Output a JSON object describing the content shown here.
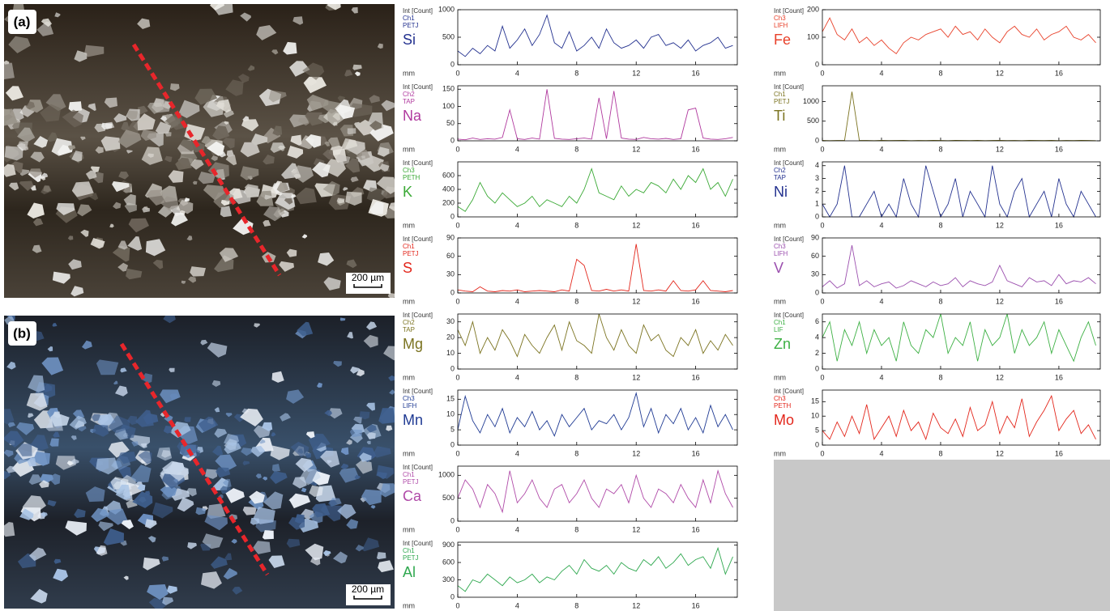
{
  "panels": [
    {
      "label": "(a)",
      "scale": "200 µm"
    },
    {
      "label": "(b)",
      "scale": "200 µm"
    }
  ],
  "chart_data": [
    {
      "type": "line",
      "y_label": "Int [Count]",
      "channel": "Ch1",
      "crystal": "PETJ",
      "title": "Si",
      "x_label": "mm",
      "color": "#23318f",
      "xlim": [
        0,
        18.8
      ],
      "xticks": [
        0,
        4,
        8,
        12,
        16
      ],
      "ylim": [
        0,
        1000
      ],
      "yticks": [
        0,
        500,
        1000
      ],
      "x": [
        0,
        0.5,
        1,
        1.5,
        2,
        2.5,
        3,
        3.5,
        4,
        4.5,
        5,
        5.5,
        6,
        6.5,
        7,
        7.5,
        8,
        8.5,
        9,
        9.5,
        10,
        10.5,
        11,
        11.5,
        12,
        12.5,
        13,
        13.5,
        14,
        14.5,
        15,
        15.5,
        16,
        16.5,
        17,
        17.5,
        18,
        18.5
      ],
      "values": [
        250,
        150,
        300,
        200,
        350,
        250,
        700,
        300,
        450,
        650,
        350,
        550,
        900,
        400,
        300,
        600,
        250,
        350,
        500,
        300,
        650,
        400,
        300,
        350,
        450,
        300,
        500,
        550,
        350,
        400,
        300,
        450,
        250,
        350,
        400,
        500,
        300,
        350
      ]
    },
    {
      "type": "line",
      "y_label": "Int [Count]",
      "channel": "Ch2",
      "crystal": "TAP",
      "title": "Na",
      "x_label": "mm",
      "color": "#b0399e",
      "xlim": [
        0,
        18.8
      ],
      "xticks": [
        0,
        4,
        8,
        12,
        16
      ],
      "ylim": [
        0,
        160
      ],
      "yticks": [
        0,
        50,
        100,
        150
      ],
      "x": [
        0,
        0.5,
        1,
        1.5,
        2,
        2.5,
        3,
        3.5,
        4,
        4.5,
        5,
        5.5,
        6,
        6.5,
        7,
        7.5,
        8,
        8.5,
        9,
        9.5,
        10,
        10.5,
        11,
        11.5,
        12,
        12.5,
        13,
        13.5,
        14,
        14.5,
        15,
        15.5,
        16,
        16.5,
        17,
        17.5,
        18,
        18.5
      ],
      "values": [
        5,
        3,
        8,
        4,
        6,
        5,
        10,
        90,
        6,
        4,
        8,
        5,
        150,
        7,
        5,
        4,
        6,
        8,
        5,
        125,
        6,
        145,
        8,
        5,
        4,
        10,
        6,
        5,
        7,
        4,
        6,
        90,
        95,
        8,
        5,
        4,
        6,
        10
      ]
    },
    {
      "type": "line",
      "y_label": "Int [Count]",
      "channel": "Ch3",
      "crystal": "PETH",
      "title": "K",
      "x_label": "mm",
      "color": "#3aa935",
      "xlim": [
        0,
        18.8
      ],
      "xticks": [
        0,
        4,
        8,
        12,
        16
      ],
      "ylim": [
        0,
        800
      ],
      "yticks": [
        0,
        200,
        400,
        600
      ],
      "x": [
        0,
        0.5,
        1,
        1.5,
        2,
        2.5,
        3,
        3.5,
        4,
        4.5,
        5,
        5.5,
        6,
        6.5,
        7,
        7.5,
        8,
        8.5,
        9,
        9.5,
        10,
        10.5,
        11,
        11.5,
        12,
        12.5,
        13,
        13.5,
        14,
        14.5,
        15,
        15.5,
        16,
        16.5,
        17,
        17.5,
        18,
        18.5
      ],
      "values": [
        150,
        80,
        250,
        500,
        300,
        200,
        350,
        250,
        150,
        200,
        300,
        150,
        250,
        200,
        150,
        300,
        200,
        400,
        700,
        350,
        300,
        250,
        450,
        300,
        400,
        350,
        500,
        450,
        350,
        550,
        400,
        600,
        500,
        700,
        400,
        500,
        300,
        550
      ]
    },
    {
      "type": "line",
      "y_label": "Int [Count]",
      "channel": "Ch1",
      "crystal": "PETJ",
      "title": "S",
      "x_label": "mm",
      "color": "#e3261b",
      "xlim": [
        0,
        18.8
      ],
      "xticks": [
        0,
        4,
        8,
        12,
        16
      ],
      "ylim": [
        0,
        90
      ],
      "yticks": [
        0,
        30,
        60,
        90
      ],
      "x": [
        0,
        0.5,
        1,
        1.5,
        2,
        2.5,
        3,
        3.5,
        4,
        4.5,
        5,
        5.5,
        6,
        6.5,
        7,
        7.5,
        8,
        8.5,
        9,
        9.5,
        10,
        10.5,
        11,
        11.5,
        12,
        12.5,
        13,
        13.5,
        14,
        14.5,
        15,
        15.5,
        16,
        16.5,
        17,
        17.5,
        18,
        18.5
      ],
      "values": [
        5,
        3,
        2,
        10,
        3,
        2,
        4,
        3,
        5,
        2,
        3,
        4,
        3,
        2,
        5,
        3,
        55,
        45,
        4,
        3,
        6,
        3,
        5,
        3,
        80,
        4,
        3,
        5,
        3,
        20,
        4,
        3,
        5,
        20,
        4,
        3,
        2,
        4
      ]
    },
    {
      "type": "line",
      "y_label": "Int [Count]",
      "channel": "Ch2",
      "crystal": "TAP",
      "title": "Mg",
      "x_label": "mm",
      "color": "#7b7320",
      "xlim": [
        0,
        18.8
      ],
      "xticks": [
        0,
        4,
        8,
        12,
        16
      ],
      "ylim": [
        0,
        35
      ],
      "yticks": [
        0,
        10,
        20,
        30
      ],
      "x": [
        0,
        0.5,
        1,
        1.5,
        2,
        2.5,
        3,
        3.5,
        4,
        4.5,
        5,
        5.5,
        6,
        6.5,
        7,
        7.5,
        8,
        8.5,
        9,
        9.5,
        10,
        10.5,
        11,
        11.5,
        12,
        12.5,
        13,
        13.5,
        14,
        14.5,
        15,
        15.5,
        16,
        16.5,
        17,
        17.5,
        18,
        18.5
      ],
      "values": [
        25,
        15,
        30,
        10,
        20,
        12,
        25,
        18,
        8,
        22,
        15,
        10,
        20,
        28,
        12,
        30,
        18,
        15,
        10,
        35,
        20,
        12,
        25,
        15,
        10,
        28,
        18,
        22,
        12,
        8,
        20,
        15,
        25,
        10,
        18,
        12,
        22,
        15
      ]
    },
    {
      "type": "line",
      "y_label": "Int [Count]",
      "channel": "Ch3",
      "crystal": "LIFH",
      "title": "Mn",
      "x_label": "mm",
      "color": "#1f3a93",
      "xlim": [
        0,
        18.8
      ],
      "xticks": [
        0,
        4,
        8,
        12,
        16
      ],
      "ylim": [
        0,
        18
      ],
      "yticks": [
        0,
        5,
        10,
        15
      ],
      "x": [
        0,
        0.5,
        1,
        1.5,
        2,
        2.5,
        3,
        3.5,
        4,
        4.5,
        5,
        5.5,
        6,
        6.5,
        7,
        7.5,
        8,
        8.5,
        9,
        9.5,
        10,
        10.5,
        11,
        11.5,
        12,
        12.5,
        13,
        13.5,
        14,
        14.5,
        15,
        15.5,
        16,
        16.5,
        17,
        17.5,
        18,
        18.5
      ],
      "values": [
        5,
        16,
        8,
        4,
        10,
        6,
        12,
        4,
        9,
        6,
        11,
        5,
        8,
        3,
        10,
        6,
        9,
        12,
        5,
        8,
        7,
        10,
        5,
        9,
        17,
        6,
        12,
        4,
        10,
        7,
        12,
        5,
        9,
        4,
        13,
        6,
        10,
        5
      ]
    },
    {
      "type": "line",
      "y_label": "Int [Count]",
      "channel": "Ch1",
      "crystal": "PETJ",
      "title": "Ca",
      "x_label": "mm",
      "color": "#b04aa8",
      "xlim": [
        0,
        18.8
      ],
      "xticks": [
        0,
        4,
        8,
        12,
        16
      ],
      "ylim": [
        0,
        1200
      ],
      "yticks": [
        0,
        500,
        1000
      ],
      "x": [
        0,
        0.5,
        1,
        1.5,
        2,
        2.5,
        3,
        3.5,
        4,
        4.5,
        5,
        5.5,
        6,
        6.5,
        7,
        7.5,
        8,
        8.5,
        9,
        9.5,
        10,
        10.5,
        11,
        11.5,
        12,
        12.5,
        13,
        13.5,
        14,
        14.5,
        15,
        15.5,
        16,
        16.5,
        17,
        17.5,
        18,
        18.5
      ],
      "values": [
        500,
        900,
        700,
        300,
        800,
        600,
        200,
        1100,
        400,
        600,
        900,
        500,
        300,
        700,
        800,
        400,
        600,
        900,
        500,
        300,
        700,
        600,
        800,
        400,
        1000,
        500,
        300,
        700,
        600,
        400,
        800,
        500,
        300,
        900,
        400,
        1100,
        600,
        300
      ]
    },
    {
      "type": "line",
      "y_label": "Int [Count]",
      "channel": "Ch1",
      "crystal": "PETJ",
      "title": "Al",
      "x_label": "mm",
      "color": "#2fa84f",
      "xlim": [
        0,
        18.8
      ],
      "xticks": [
        0,
        4,
        8,
        12,
        16
      ],
      "ylim": [
        0,
        950
      ],
      "yticks": [
        0,
        300,
        600,
        900
      ],
      "x": [
        0,
        0.5,
        1,
        1.5,
        2,
        2.5,
        3,
        3.5,
        4,
        4.5,
        5,
        5.5,
        6,
        6.5,
        7,
        7.5,
        8,
        8.5,
        9,
        9.5,
        10,
        10.5,
        11,
        11.5,
        12,
        12.5,
        13,
        13.5,
        14,
        14.5,
        15,
        15.5,
        16,
        16.5,
        17,
        17.5,
        18,
        18.5
      ],
      "values": [
        200,
        100,
        300,
        250,
        400,
        300,
        200,
        350,
        250,
        300,
        400,
        250,
        350,
        300,
        450,
        550,
        400,
        650,
        500,
        450,
        550,
        400,
        600,
        500,
        450,
        650,
        550,
        700,
        500,
        600,
        750,
        550,
        650,
        700,
        500,
        850,
        400,
        700
      ]
    },
    {
      "type": "line",
      "y_label": "Int [Count]",
      "channel": "Ch3",
      "crystal": "LIFH",
      "title": "Fe",
      "x_label": "mm",
      "color": "#e8412a",
      "xlim": [
        0,
        18.8
      ],
      "xticks": [
        0,
        4,
        8,
        12,
        16
      ],
      "ylim": [
        0,
        200
      ],
      "yticks": [
        0,
        100,
        200
      ],
      "x": [
        0,
        0.5,
        1,
        1.5,
        2,
        2.5,
        3,
        3.5,
        4,
        4.5,
        5,
        5.5,
        6,
        6.5,
        7,
        7.5,
        8,
        8.5,
        9,
        9.5,
        10,
        10.5,
        11,
        11.5,
        12,
        12.5,
        13,
        13.5,
        14,
        14.5,
        15,
        15.5,
        16,
        16.5,
        17,
        17.5,
        18,
        18.5
      ],
      "values": [
        120,
        170,
        110,
        90,
        130,
        80,
        100,
        70,
        90,
        60,
        40,
        80,
        100,
        90,
        110,
        120,
        130,
        100,
        140,
        110,
        120,
        90,
        130,
        100,
        80,
        120,
        140,
        110,
        100,
        130,
        90,
        110,
        120,
        140,
        100,
        90,
        110,
        80
      ]
    },
    {
      "type": "line",
      "y_label": "Int [Count]",
      "channel": "Ch1",
      "crystal": "PETJ",
      "title": "Ti",
      "x_label": "mm",
      "color": "#7b7320",
      "xlim": [
        0,
        18.8
      ],
      "xticks": [
        0,
        4,
        8,
        12,
        16
      ],
      "ylim": [
        0,
        1400
      ],
      "yticks": [
        0,
        500,
        1000
      ],
      "x": [
        0,
        0.5,
        1,
        1.5,
        2,
        2.5,
        3,
        3.5,
        4,
        4.5,
        5,
        5.5,
        6,
        6.5,
        7,
        7.5,
        8,
        8.5,
        9,
        9.5,
        10,
        10.5,
        11,
        11.5,
        12,
        12.5,
        13,
        13.5,
        14,
        14.5,
        15,
        15.5,
        16,
        16.5,
        17,
        17.5,
        18,
        18.5
      ],
      "values": [
        10,
        5,
        8,
        10,
        1250,
        12,
        8,
        5,
        10,
        6,
        8,
        10,
        5,
        8,
        6,
        10,
        8,
        5,
        10,
        8,
        6,
        10,
        5,
        8,
        10,
        6,
        8,
        5,
        10,
        8,
        6,
        10,
        5,
        8,
        6,
        10,
        8,
        5
      ]
    },
    {
      "type": "line",
      "y_label": "Int [Count]",
      "channel": "Ch2",
      "crystal": "TAP",
      "title": "Ni",
      "x_label": "mm",
      "color": "#23318f",
      "xlim": [
        0,
        18.8
      ],
      "xticks": [
        0,
        4,
        8,
        12,
        16
      ],
      "ylim": [
        0,
        4.3
      ],
      "yticks": [
        0,
        1,
        2,
        3,
        4
      ],
      "x": [
        0,
        0.5,
        1,
        1.5,
        2,
        2.5,
        3,
        3.5,
        4,
        4.5,
        5,
        5.5,
        6,
        6.5,
        7,
        7.5,
        8,
        8.5,
        9,
        9.5,
        10,
        10.5,
        11,
        11.5,
        12,
        12.5,
        13,
        13.5,
        14,
        14.5,
        15,
        15.5,
        16,
        16.5,
        17,
        17.5,
        18,
        18.5
      ],
      "values": [
        1,
        0,
        1,
        4,
        0,
        0,
        1,
        2,
        0,
        1,
        0,
        3,
        1,
        0,
        4,
        2,
        0,
        1,
        3,
        0,
        2,
        1,
        0,
        4,
        1,
        0,
        2,
        3,
        0,
        1,
        2,
        0,
        3,
        1,
        0,
        2,
        1,
        0
      ]
    },
    {
      "type": "line",
      "y_label": "Int [Count]",
      "channel": "Ch3",
      "crystal": "LIFH",
      "title": "V",
      "x_label": "mm",
      "color": "#9b4fae",
      "xlim": [
        0,
        18.8
      ],
      "xticks": [
        0,
        4,
        8,
        12,
        16
      ],
      "ylim": [
        0,
        90
      ],
      "yticks": [
        0,
        30,
        60,
        90
      ],
      "x": [
        0,
        0.5,
        1,
        1.5,
        2,
        2.5,
        3,
        3.5,
        4,
        4.5,
        5,
        5.5,
        6,
        6.5,
        7,
        7.5,
        8,
        8.5,
        9,
        9.5,
        10,
        10.5,
        11,
        11.5,
        12,
        12.5,
        13,
        13.5,
        14,
        14.5,
        15,
        15.5,
        16,
        16.5,
        17,
        17.5,
        18,
        18.5
      ],
      "values": [
        10,
        20,
        8,
        15,
        78,
        12,
        20,
        10,
        15,
        18,
        8,
        12,
        20,
        15,
        10,
        18,
        12,
        15,
        25,
        10,
        20,
        15,
        12,
        18,
        45,
        20,
        15,
        10,
        25,
        18,
        20,
        12,
        30,
        15,
        20,
        18,
        25,
        15
      ]
    },
    {
      "type": "line",
      "y_label": "Int [Count]",
      "channel": "Ch1",
      "crystal": "LIF",
      "title": "Zn",
      "x_label": "mm",
      "color": "#3cb043",
      "xlim": [
        0,
        18.8
      ],
      "xticks": [
        0,
        4,
        8,
        12,
        16
      ],
      "ylim": [
        0,
        7
      ],
      "yticks": [
        0,
        2,
        4,
        6
      ],
      "x": [
        0,
        0.5,
        1,
        1.5,
        2,
        2.5,
        3,
        3.5,
        4,
        4.5,
        5,
        5.5,
        6,
        6.5,
        7,
        7.5,
        8,
        8.5,
        9,
        9.5,
        10,
        10.5,
        11,
        11.5,
        12,
        12.5,
        13,
        13.5,
        14,
        14.5,
        15,
        15.5,
        16,
        16.5,
        17,
        17.5,
        18,
        18.5
      ],
      "values": [
        4,
        6,
        1,
        5,
        3,
        6,
        2,
        5,
        3,
        4,
        1,
        6,
        3,
        2,
        5,
        4,
        7,
        2,
        4,
        3,
        6,
        1,
        5,
        3,
        4,
        7,
        2,
        5,
        3,
        4,
        6,
        2,
        5,
        3,
        1,
        4,
        6,
        3
      ]
    },
    {
      "type": "line",
      "y_label": "Int [Count]",
      "channel": "Ch3",
      "crystal": "PETH",
      "title": "Mo",
      "x_label": "mm",
      "color": "#e3261b",
      "xlim": [
        0,
        18.8
      ],
      "xticks": [
        0,
        4,
        8,
        12,
        16
      ],
      "ylim": [
        0,
        19
      ],
      "yticks": [
        0,
        5,
        10,
        15
      ],
      "x": [
        0,
        0.5,
        1,
        1.5,
        2,
        2.5,
        3,
        3.5,
        4,
        4.5,
        5,
        5.5,
        6,
        6.5,
        7,
        7.5,
        8,
        8.5,
        9,
        9.5,
        10,
        10.5,
        11,
        11.5,
        12,
        12.5,
        13,
        13.5,
        14,
        14.5,
        15,
        15.5,
        16,
        16.5,
        17,
        17.5,
        18,
        18.5
      ],
      "values": [
        5,
        2,
        8,
        3,
        10,
        4,
        14,
        2,
        6,
        10,
        3,
        12,
        5,
        8,
        2,
        11,
        6,
        4,
        9,
        3,
        13,
        5,
        7,
        15,
        4,
        10,
        6,
        16,
        3,
        8,
        12,
        17,
        5,
        9,
        12,
        4,
        7,
        2
      ]
    }
  ]
}
